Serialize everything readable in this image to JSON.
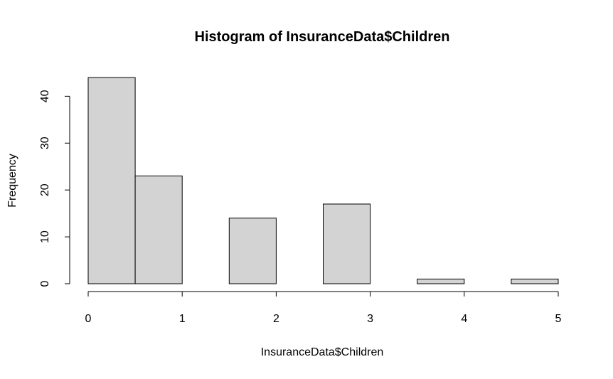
{
  "chart_data": {
    "type": "bar",
    "title": "Histogram of InsuranceData$Children",
    "xlabel": "InsuranceData$Children",
    "ylabel": "Frequency",
    "bins": [
      {
        "start": 0.0,
        "end": 0.5,
        "count": 44
      },
      {
        "start": 0.5,
        "end": 1.0,
        "count": 23
      },
      {
        "start": 1.0,
        "end": 1.5,
        "count": 0
      },
      {
        "start": 1.5,
        "end": 2.0,
        "count": 14
      },
      {
        "start": 2.0,
        "end": 2.5,
        "count": 0
      },
      {
        "start": 2.5,
        "end": 3.0,
        "count": 17
      },
      {
        "start": 3.0,
        "end": 3.5,
        "count": 0
      },
      {
        "start": 3.5,
        "end": 4.0,
        "count": 1
      },
      {
        "start": 4.0,
        "end": 4.5,
        "count": 0
      },
      {
        "start": 4.5,
        "end": 5.0,
        "count": 1
      }
    ],
    "xlim": [
      0,
      5
    ],
    "ylim": [
      0,
      44
    ],
    "xticks": [
      "0",
      "1",
      "2",
      "3",
      "4",
      "5"
    ],
    "yticks": [
      "0",
      "10",
      "20",
      "30",
      "40"
    ],
    "bar_fill": "#d3d3d3",
    "bar_stroke": "#000000",
    "grid": false,
    "legend": "none"
  }
}
